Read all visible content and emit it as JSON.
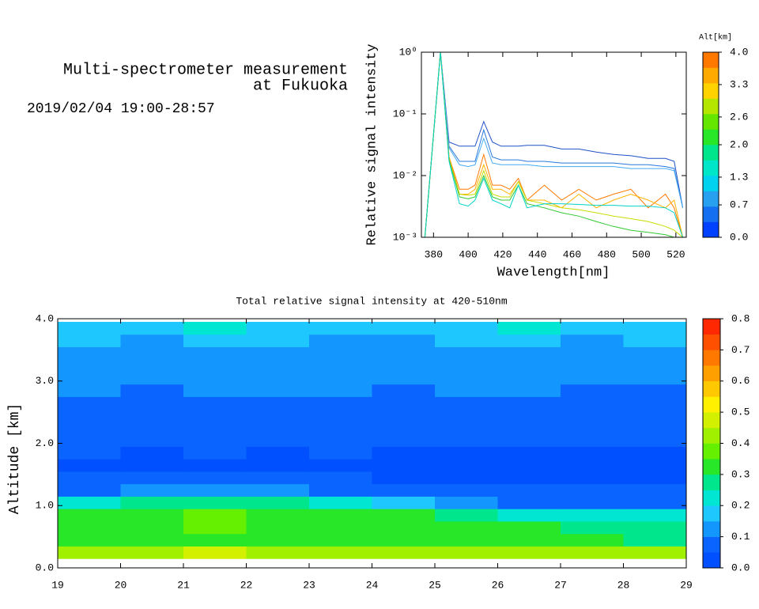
{
  "header": {
    "title_lines": [
      "Multi-spectrometer measurement",
      "at Fukuoka"
    ],
    "subtitle": "2019/02/04 19:00-28:57"
  },
  "chart_data": [
    {
      "type": "line",
      "y_label": "Relative signal intensity",
      "x_label": "Wavelength[nm]",
      "yscale": "log",
      "xlim": [
        373,
        526
      ],
      "xticks": [
        380,
        400,
        420,
        440,
        460,
        480,
        500,
        520
      ],
      "ylim": [
        0.001,
        1
      ],
      "yticks": [
        {
          "value": 0.001,
          "label": "10⁻³"
        },
        {
          "value": 0.01,
          "label": "10⁻²"
        },
        {
          "value": 0.1,
          "label": "10⁻¹"
        },
        {
          "value": 1,
          "label": "10⁰"
        }
      ],
      "x": [
        375,
        384,
        389,
        395,
        400,
        404,
        409,
        414,
        419,
        424,
        429,
        434,
        444,
        454,
        464,
        474,
        484,
        494,
        504,
        514,
        519,
        524
      ],
      "series": [
        {
          "color": "#1e50c8",
          "values": [
            0.001,
            1,
            0.035,
            0.03,
            0.03,
            0.03,
            0.075,
            0.035,
            0.03,
            0.03,
            0.03,
            0.031,
            0.031,
            0.027,
            0.027,
            0.024,
            0.022,
            0.021,
            0.019,
            0.019,
            0.017,
            0.003
          ]
        },
        {
          "color": "#2878dc",
          "values": [
            0.001,
            1,
            0.03,
            0.017,
            0.017,
            0.017,
            0.055,
            0.02,
            0.018,
            0.018,
            0.018,
            0.017,
            0.017,
            0.016,
            0.016,
            0.016,
            0.016,
            0.015,
            0.015,
            0.014,
            0.013,
            0.003
          ]
        },
        {
          "color": "#46aaf0",
          "values": [
            0.001,
            1,
            0.028,
            0.015,
            0.014,
            0.015,
            0.04,
            0.016,
            0.015,
            0.015,
            0.015,
            0.015,
            0.014,
            0.014,
            0.014,
            0.014,
            0.014,
            0.013,
            0.013,
            0.013,
            0.012,
            0.003
          ]
        },
        {
          "color": "#ff7800",
          "values": [
            0.001,
            1,
            0.02,
            0.006,
            0.006,
            0.007,
            0.022,
            0.007,
            0.007,
            0.006,
            0.009,
            0.004,
            0.007,
            0.004,
            0.006,
            0.004,
            0.005,
            0.006,
            0.003,
            0.005,
            0.003,
            0.001
          ]
        },
        {
          "color": "#ffb400",
          "values": [
            0.001,
            1,
            0.02,
            0.005,
            0.005,
            0.006,
            0.015,
            0.006,
            0.006,
            0.005,
            0.008,
            0.004,
            0.004,
            0.003,
            0.005,
            0.003,
            0.004,
            0.005,
            0.004,
            0.003,
            0.004,
            0.001
          ]
        },
        {
          "color": "#c8dc00",
          "values": [
            0.001,
            1,
            0.018,
            0.005,
            0.0048,
            0.005,
            0.012,
            0.005,
            0.0045,
            0.0045,
            0.008,
            0.004,
            0.0035,
            0.003,
            0.0028,
            0.0025,
            0.0022,
            0.002,
            0.0018,
            0.0015,
            0.0013,
            0.001
          ]
        },
        {
          "color": "#32c832",
          "values": [
            0.001,
            1,
            0.018,
            0.0045,
            0.0042,
            0.0045,
            0.01,
            0.0045,
            0.004,
            0.004,
            0.007,
            0.0035,
            0.003,
            0.0025,
            0.0022,
            0.0018,
            0.0015,
            0.0013,
            0.0012,
            0.0011,
            0.001,
            0.001
          ]
        },
        {
          "color": "#00d2c8",
          "values": [
            0.001,
            1,
            0.017,
            0.0035,
            0.0032,
            0.004,
            0.009,
            0.004,
            0.0035,
            0.003,
            0.007,
            0.003,
            0.0035,
            0.0035,
            0.0034,
            0.0033,
            0.0033,
            0.0032,
            0.0032,
            0.003,
            0.0025,
            0.001
          ]
        }
      ],
      "colorbar": {
        "label": "Alt[km]",
        "lim": [
          0,
          4
        ],
        "colors": [
          "#0040ff",
          "#1470f0",
          "#28a0f0",
          "#00d2f0",
          "#00e6c8",
          "#00e68c",
          "#28e628",
          "#64e600",
          "#b4e600",
          "#ffd200",
          "#ffaa00",
          "#ff7800"
        ],
        "ticks": [
          {
            "value": 0,
            "label": "0.0"
          },
          {
            "value": 0.7,
            "label": "0.7"
          },
          {
            "value": 1.3,
            "label": "1.3"
          },
          {
            "value": 2,
            "label": "2.0"
          },
          {
            "value": 2.6,
            "label": "2.6"
          },
          {
            "value": 3.3,
            "label": "3.3"
          },
          {
            "value": 4,
            "label": "4.0"
          }
        ]
      }
    },
    {
      "type": "heatmap",
      "title": "Total relative signal intensity at 420-510nm",
      "y_label": "Altitude [km]",
      "xlim": [
        19,
        29
      ],
      "xticks": [
        19,
        20,
        21,
        22,
        23,
        24,
        25,
        26,
        27,
        28,
        29
      ],
      "ylim": [
        0,
        4
      ],
      "yticks": [
        {
          "value": 0,
          "label": "0.0"
        },
        {
          "value": 1,
          "label": "1.0"
        },
        {
          "value": 2,
          "label": "2.0"
        },
        {
          "value": 3,
          "label": "3.0"
        },
        {
          "value": 4,
          "label": "4.0"
        }
      ],
      "x": [
        19.5,
        20.5,
        21.5,
        22.5,
        23.5,
        24.5,
        25.5,
        26.5,
        27.5,
        28.5
      ],
      "y": [
        0.25,
        0.45,
        0.65,
        0.85,
        1.05,
        1.25,
        1.45,
        1.65,
        1.85,
        2.05,
        2.25,
        2.45,
        2.65,
        2.85,
        3.05,
        3.25,
        3.45,
        3.65,
        3.85
      ],
      "z": [
        [
          0.42,
          0.44,
          0.45,
          0.44,
          0.43,
          0.44,
          0.42,
          0.42,
          0.4,
          0.4
        ],
        [
          0.33,
          0.34,
          0.35,
          0.34,
          0.33,
          0.33,
          0.32,
          0.31,
          0.31,
          0.3
        ],
        [
          0.34,
          0.35,
          0.36,
          0.35,
          0.34,
          0.33,
          0.32,
          0.31,
          0.3,
          0.29
        ],
        [
          0.33,
          0.35,
          0.36,
          0.35,
          0.33,
          0.32,
          0.28,
          0.24,
          0.22,
          0.2
        ],
        [
          0.24,
          0.28,
          0.29,
          0.28,
          0.24,
          0.18,
          0.1,
          0.08,
          0.08,
          0.07
        ],
        [
          0.08,
          0.12,
          0.12,
          0.1,
          0.08,
          0.07,
          0.06,
          0.05,
          0.05,
          0.05
        ],
        [
          0.05,
          0.05,
          0.05,
          0.05,
          0.05,
          0.04,
          0.04,
          0.04,
          0.04,
          0.04
        ],
        [
          0.04,
          0.04,
          0.04,
          0.04,
          0.04,
          0.04,
          0.04,
          0.04,
          0.04,
          0.04
        ],
        [
          0.05,
          0.04,
          0.05,
          0.04,
          0.05,
          0.04,
          0.04,
          0.04,
          0.04,
          0.04
        ],
        [
          0.06,
          0.05,
          0.06,
          0.05,
          0.06,
          0.05,
          0.05,
          0.05,
          0.05,
          0.05
        ],
        [
          0.07,
          0.06,
          0.07,
          0.07,
          0.07,
          0.06,
          0.06,
          0.06,
          0.06,
          0.06
        ],
        [
          0.08,
          0.07,
          0.08,
          0.08,
          0.08,
          0.07,
          0.07,
          0.07,
          0.07,
          0.07
        ],
        [
          0.09,
          0.08,
          0.09,
          0.09,
          0.09,
          0.08,
          0.08,
          0.09,
          0.08,
          0.08
        ],
        [
          0.1,
          0.09,
          0.1,
          0.1,
          0.1,
          0.09,
          0.1,
          0.1,
          0.09,
          0.09
        ],
        [
          0.11,
          0.1,
          0.11,
          0.11,
          0.11,
          0.1,
          0.11,
          0.11,
          0.1,
          0.1
        ],
        [
          0.12,
          0.11,
          0.12,
          0.12,
          0.12,
          0.11,
          0.12,
          0.12,
          0.11,
          0.11
        ],
        [
          0.14,
          0.13,
          0.15,
          0.14,
          0.13,
          0.13,
          0.14,
          0.14,
          0.13,
          0.14
        ],
        [
          0.16,
          0.15,
          0.17,
          0.16,
          0.15,
          0.15,
          0.16,
          0.17,
          0.15,
          0.16
        ],
        [
          0.19,
          0.18,
          0.2,
          0.19,
          0.18,
          0.18,
          0.19,
          0.2,
          0.18,
          0.19
        ]
      ],
      "colorbar": {
        "lim": [
          0,
          0.8
        ],
        "colors": [
          "#0050ff",
          "#0a64ff",
          "#1496ff",
          "#1ec8ff",
          "#00e6d2",
          "#00e68c",
          "#28e628",
          "#64f000",
          "#a0f000",
          "#d2f000",
          "#fff000",
          "#ffc800",
          "#ffa000",
          "#ff7800",
          "#ff5000",
          "#ff2800"
        ],
        "ticks": [
          {
            "value": 0,
            "label": "0.0"
          },
          {
            "value": 0.1,
            "label": "0.1"
          },
          {
            "value": 0.2,
            "label": "0.2"
          },
          {
            "value": 0.3,
            "label": "0.3"
          },
          {
            "value": 0.4,
            "label": "0.4"
          },
          {
            "value": 0.5,
            "label": "0.5"
          },
          {
            "value": 0.6,
            "label": "0.6"
          },
          {
            "value": 0.7,
            "label": "0.7"
          },
          {
            "value": 0.8,
            "label": "0.8"
          }
        ]
      }
    }
  ]
}
